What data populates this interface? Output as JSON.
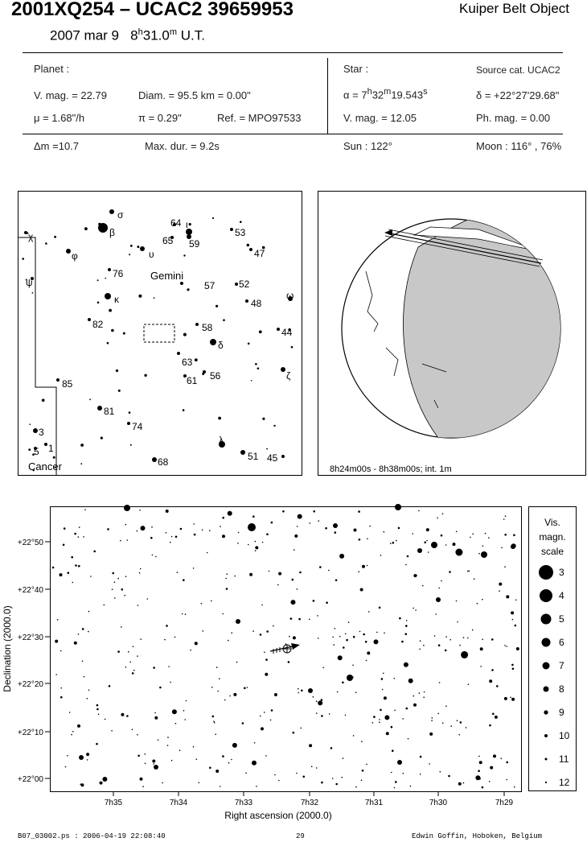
{
  "header": {
    "title": "2001XQ254  –  UCAC2 39659953",
    "object_type": "Kuiper Belt Object",
    "date": "2007 mar  9",
    "time_h": "8",
    "time_m": "31.0",
    "time_suffix": "U.T."
  },
  "planet": {
    "label": "Planet :",
    "vmag": "V. mag. = 22.79",
    "diam": "Diam. = 95.5 km = 0.00\"",
    "mu": "μ = 1.68\"/h",
    "pi": "π = 0.29\"",
    "ref": "Ref. = MPO97533"
  },
  "star": {
    "label": "Star :",
    "source": "Source cat. UCAC2",
    "alpha_prefix": "α = 7",
    "alpha_h": "h",
    "alpha_mid": "32",
    "alpha_m": "m",
    "alpha_sec": "19.543",
    "alpha_s": "s",
    "delta": "δ = +22°27'29.68\"",
    "vmag": "V. mag. = 12.05",
    "phmag": "Ph. mag. = 0.00"
  },
  "event": {
    "dm": "Δm =10.7",
    "maxdur": "Max. dur. = 9.2s",
    "sun": "Sun : 122°",
    "moon": "Moon : 116° , 76%"
  },
  "finder": {
    "constellation_main": "Gemini",
    "constellation_2": "Cancer",
    "labels": [
      "σ",
      "β",
      "64",
      "ι",
      "53",
      "65",
      "59",
      "χ",
      "φ",
      "υ",
      "47",
      "ψ",
      "76",
      "57",
      "52",
      "ω",
      "κ",
      "48",
      "82",
      "58",
      "44",
      "δ",
      "63",
      "ζ",
      "61",
      "56",
      "85",
      "81",
      "74",
      "3",
      "λ",
      "5",
      "1",
      "51",
      "45",
      "68"
    ]
  },
  "globe": {
    "caption": "8h24m00s -  8h38m00s; int.  1m"
  },
  "chart": {
    "dec_ticks": [
      "+22°50",
      "+22°40",
      "+22°30",
      "+22°20",
      "+22°10",
      "+22°00"
    ],
    "ra_ticks": [
      "7h35",
      "7h34",
      "7h33",
      "7h32",
      "7h31",
      "7h30",
      "7h29"
    ],
    "xlabel": "Right ascension (2000.0)",
    "ylabel": "Declination (2000.0)"
  },
  "scale": {
    "title1": "Vis.",
    "title2": "magn.",
    "title3": "scale",
    "mags": [
      "3",
      "4",
      "5",
      "6",
      "7",
      "8",
      "9",
      "10",
      "11",
      "12"
    ]
  },
  "footer": {
    "file": "B07_03002.ps : 2006-04-19 22:08:40",
    "page": "29",
    "author": "Edwin Goffin, Hoboken, Belgium"
  }
}
